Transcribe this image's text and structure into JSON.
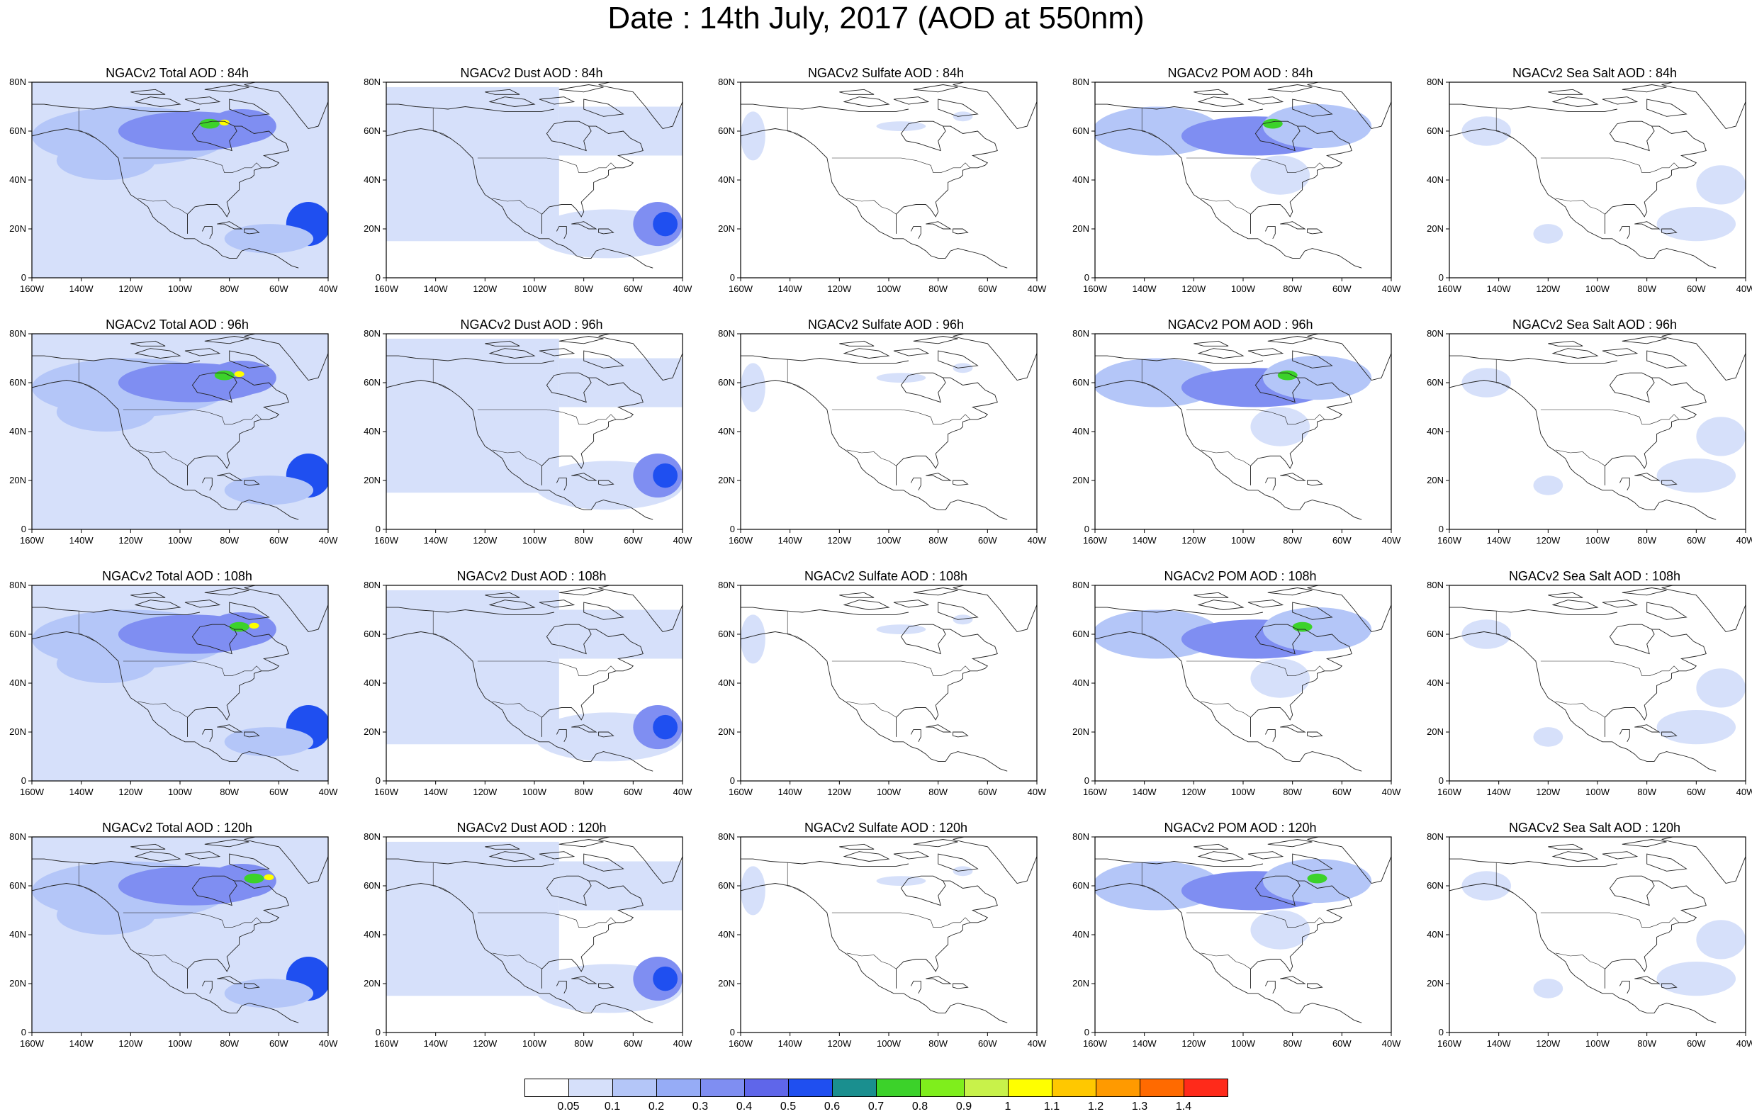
{
  "title": "Date : 14th July, 2017 (AOD at 550nm)",
  "axes": {
    "x_ticks": [
      "160W",
      "140W",
      "120W",
      "100W",
      "80W",
      "60W",
      "40W"
    ],
    "y_ticks": [
      "0",
      "20N",
      "40N",
      "60N",
      "80N"
    ]
  },
  "columns": [
    {
      "key": "total",
      "label": "NGACv2 Total AOD"
    },
    {
      "key": "dust",
      "label": "NGACv2 Dust AOD"
    },
    {
      "key": "sulfate",
      "label": "NGACv2 Sulfate AOD"
    },
    {
      "key": "pom",
      "label": "NGACv2 POM AOD"
    },
    {
      "key": "seasalt",
      "label": "NGACv2 Sea Salt AOD"
    }
  ],
  "forecast_hours": [
    "84h",
    "96h",
    "108h",
    "120h"
  ],
  "panel_titles": [
    [
      "NGACv2 Total AOD : 84h",
      "NGACv2 Dust AOD : 84h",
      "NGACv2 Sulfate AOD : 84h",
      "NGACv2 POM AOD : 84h",
      "NGACv2 Sea Salt AOD : 84h"
    ],
    [
      "NGACv2 Total AOD : 96h",
      "NGACv2 Dust AOD : 96h",
      "NGACv2 Sulfate AOD : 96h",
      "NGACv2 POM AOD : 96h",
      "NGACv2 Sea Salt AOD : 96h"
    ],
    [
      "NGACv2 Total AOD : 108h",
      "NGACv2 Dust AOD : 108h",
      "NGACv2 Sulfate AOD : 108h",
      "NGACv2 POM AOD : 108h",
      "NGACv2 Sea Salt AOD : 108h"
    ],
    [
      "NGACv2 Total AOD : 120h",
      "NGACv2 Dust AOD : 120h",
      "NGACv2 Sulfate AOD : 120h",
      "NGACv2 POM AOD : 120h",
      "NGACv2 Sea Salt  AOD : 120h"
    ]
  ],
  "colorbar": {
    "labels": [
      "0.05",
      "0.1",
      "0.2",
      "0.3",
      "0.4",
      "0.5",
      "0.6",
      "0.7",
      "0.8",
      "0.9",
      "1",
      "1.1",
      "1.2",
      "1.3",
      "1.4"
    ],
    "colors": [
      "#ffffff",
      "#d6e0fa",
      "#b4c6f8",
      "#96acf6",
      "#7f8ef2",
      "#5f66ea",
      "#1f4ff0",
      "#1a8f8f",
      "#3cd22a",
      "#7fee1c",
      "#c8f24a",
      "#ffff00",
      "#ffc800",
      "#ff9a00",
      "#ff6a00",
      "#ff2a1a"
    ]
  },
  "map_style": {
    "light": "#d6e0fa",
    "medium": "#b4c6f8",
    "strong": "#7f8ef2",
    "deep": "#1f4ff0",
    "hot_green": "#3cd22a",
    "hot_yellow": "#ffff00"
  }
}
